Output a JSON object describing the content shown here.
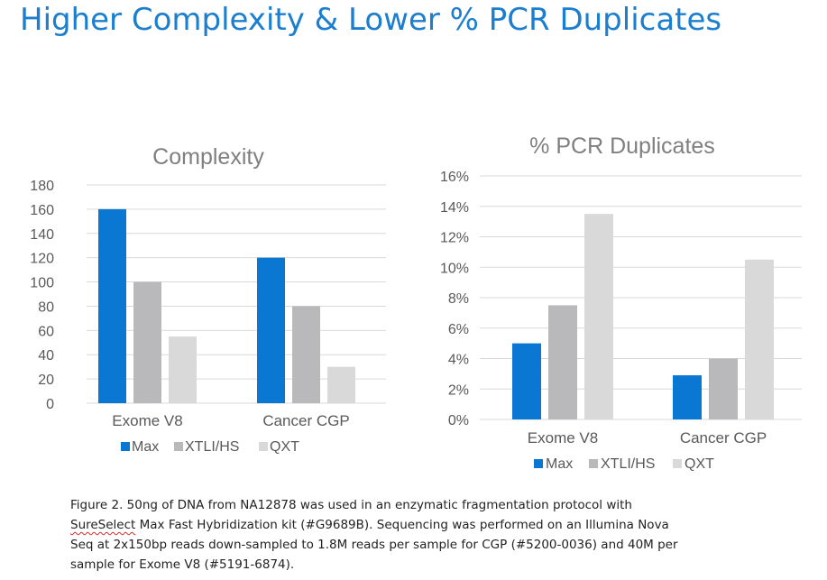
{
  "slide": {
    "title": "Higher Complexity & Lower % PCR Duplicates"
  },
  "colors": {
    "title": "#1b7ecf",
    "Max": "#0a78d2",
    "XTLI/HS": "#b9b9bb",
    "QXT": "#d9d9d9",
    "grid": "#d9d9d9",
    "axis_text": "#595959",
    "chart_title": "#7f7f7f"
  },
  "caption": {
    "prefix": "Figure 2. 50ng of DNA from NA12878 was used in an enzymatic fragmentation protocol with",
    "squiggle_word": "SureSelect",
    "suffix": "Max Fast Hybridization kit (#G9689B). Sequencing was performed on an Illumina Nova Seq at 2x150bp reads down-sampled to 1.8M reads per sample for CGP (#5200-0036) and 40M per sample for Exome V8 (#5191-6874)."
  },
  "chart_data": [
    {
      "type": "bar",
      "title": "Complexity",
      "categories": [
        "Exome V8",
        "Cancer CGP"
      ],
      "series": [
        {
          "name": "Max",
          "values": [
            160,
            120
          ]
        },
        {
          "name": "XTLI/HS",
          "values": [
            100,
            80
          ]
        },
        {
          "name": "QXT",
          "values": [
            55,
            30
          ]
        }
      ],
      "ylim": [
        0,
        180
      ],
      "yticks": [
        0,
        20,
        40,
        60,
        80,
        100,
        120,
        140,
        160,
        180
      ],
      "ytick_labels": [
        "0",
        "20",
        "40",
        "60",
        "80",
        "100",
        "120",
        "140",
        "160",
        "180"
      ],
      "grid": true,
      "legend": "bottom"
    },
    {
      "type": "bar",
      "title": "% PCR Duplicates",
      "categories": [
        "Exome V8",
        "Cancer CGP"
      ],
      "series": [
        {
          "name": "Max",
          "values": [
            5,
            2.9
          ]
        },
        {
          "name": "XTLI/HS",
          "values": [
            7.5,
            4
          ]
        },
        {
          "name": "QXT",
          "values": [
            13.5,
            10.5
          ]
        }
      ],
      "ylim": [
        0,
        16
      ],
      "yticks": [
        0,
        2,
        4,
        6,
        8,
        10,
        12,
        14,
        16
      ],
      "ytick_labels": [
        "0%",
        "2%",
        "4%",
        "6%",
        "8%",
        "10%",
        "12%",
        "14%",
        "16%"
      ],
      "grid": true,
      "legend": "bottom"
    }
  ]
}
